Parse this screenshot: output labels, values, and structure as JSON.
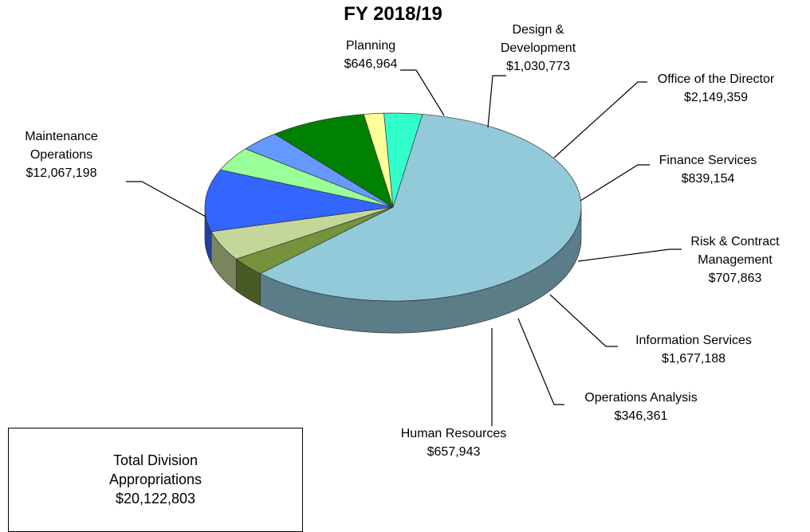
{
  "chart_data": {
    "type": "pie3d",
    "title": "FY 2018/19",
    "categories": [
      "Maintenance Operations",
      "Planning",
      "Design & Development",
      "Office of the Director",
      "Finance Services",
      "Risk & Contract Management",
      "Information Services",
      "Operations Analysis",
      "Human Resources"
    ],
    "values": [
      12067198,
      646964,
      1030773,
      2149359,
      839154,
      707863,
      1677188,
      346361,
      657943
    ],
    "value_labels": [
      "$12,067,198",
      "$646,964",
      "$1,030,773",
      "$2,149,359",
      "$839,154",
      "$707,863",
      "$1,677,188",
      "$346,361",
      "$657,943"
    ],
    "colors": [
      "#92cad9",
      "#76923c",
      "#c4d79b",
      "#3366ff",
      "#99ff99",
      "#6699ff",
      "#008000",
      "#ffff99",
      "#33ffcc"
    ],
    "total": {
      "text": "Total Division Appropriations",
      "value_label": "$20,122,803"
    }
  }
}
